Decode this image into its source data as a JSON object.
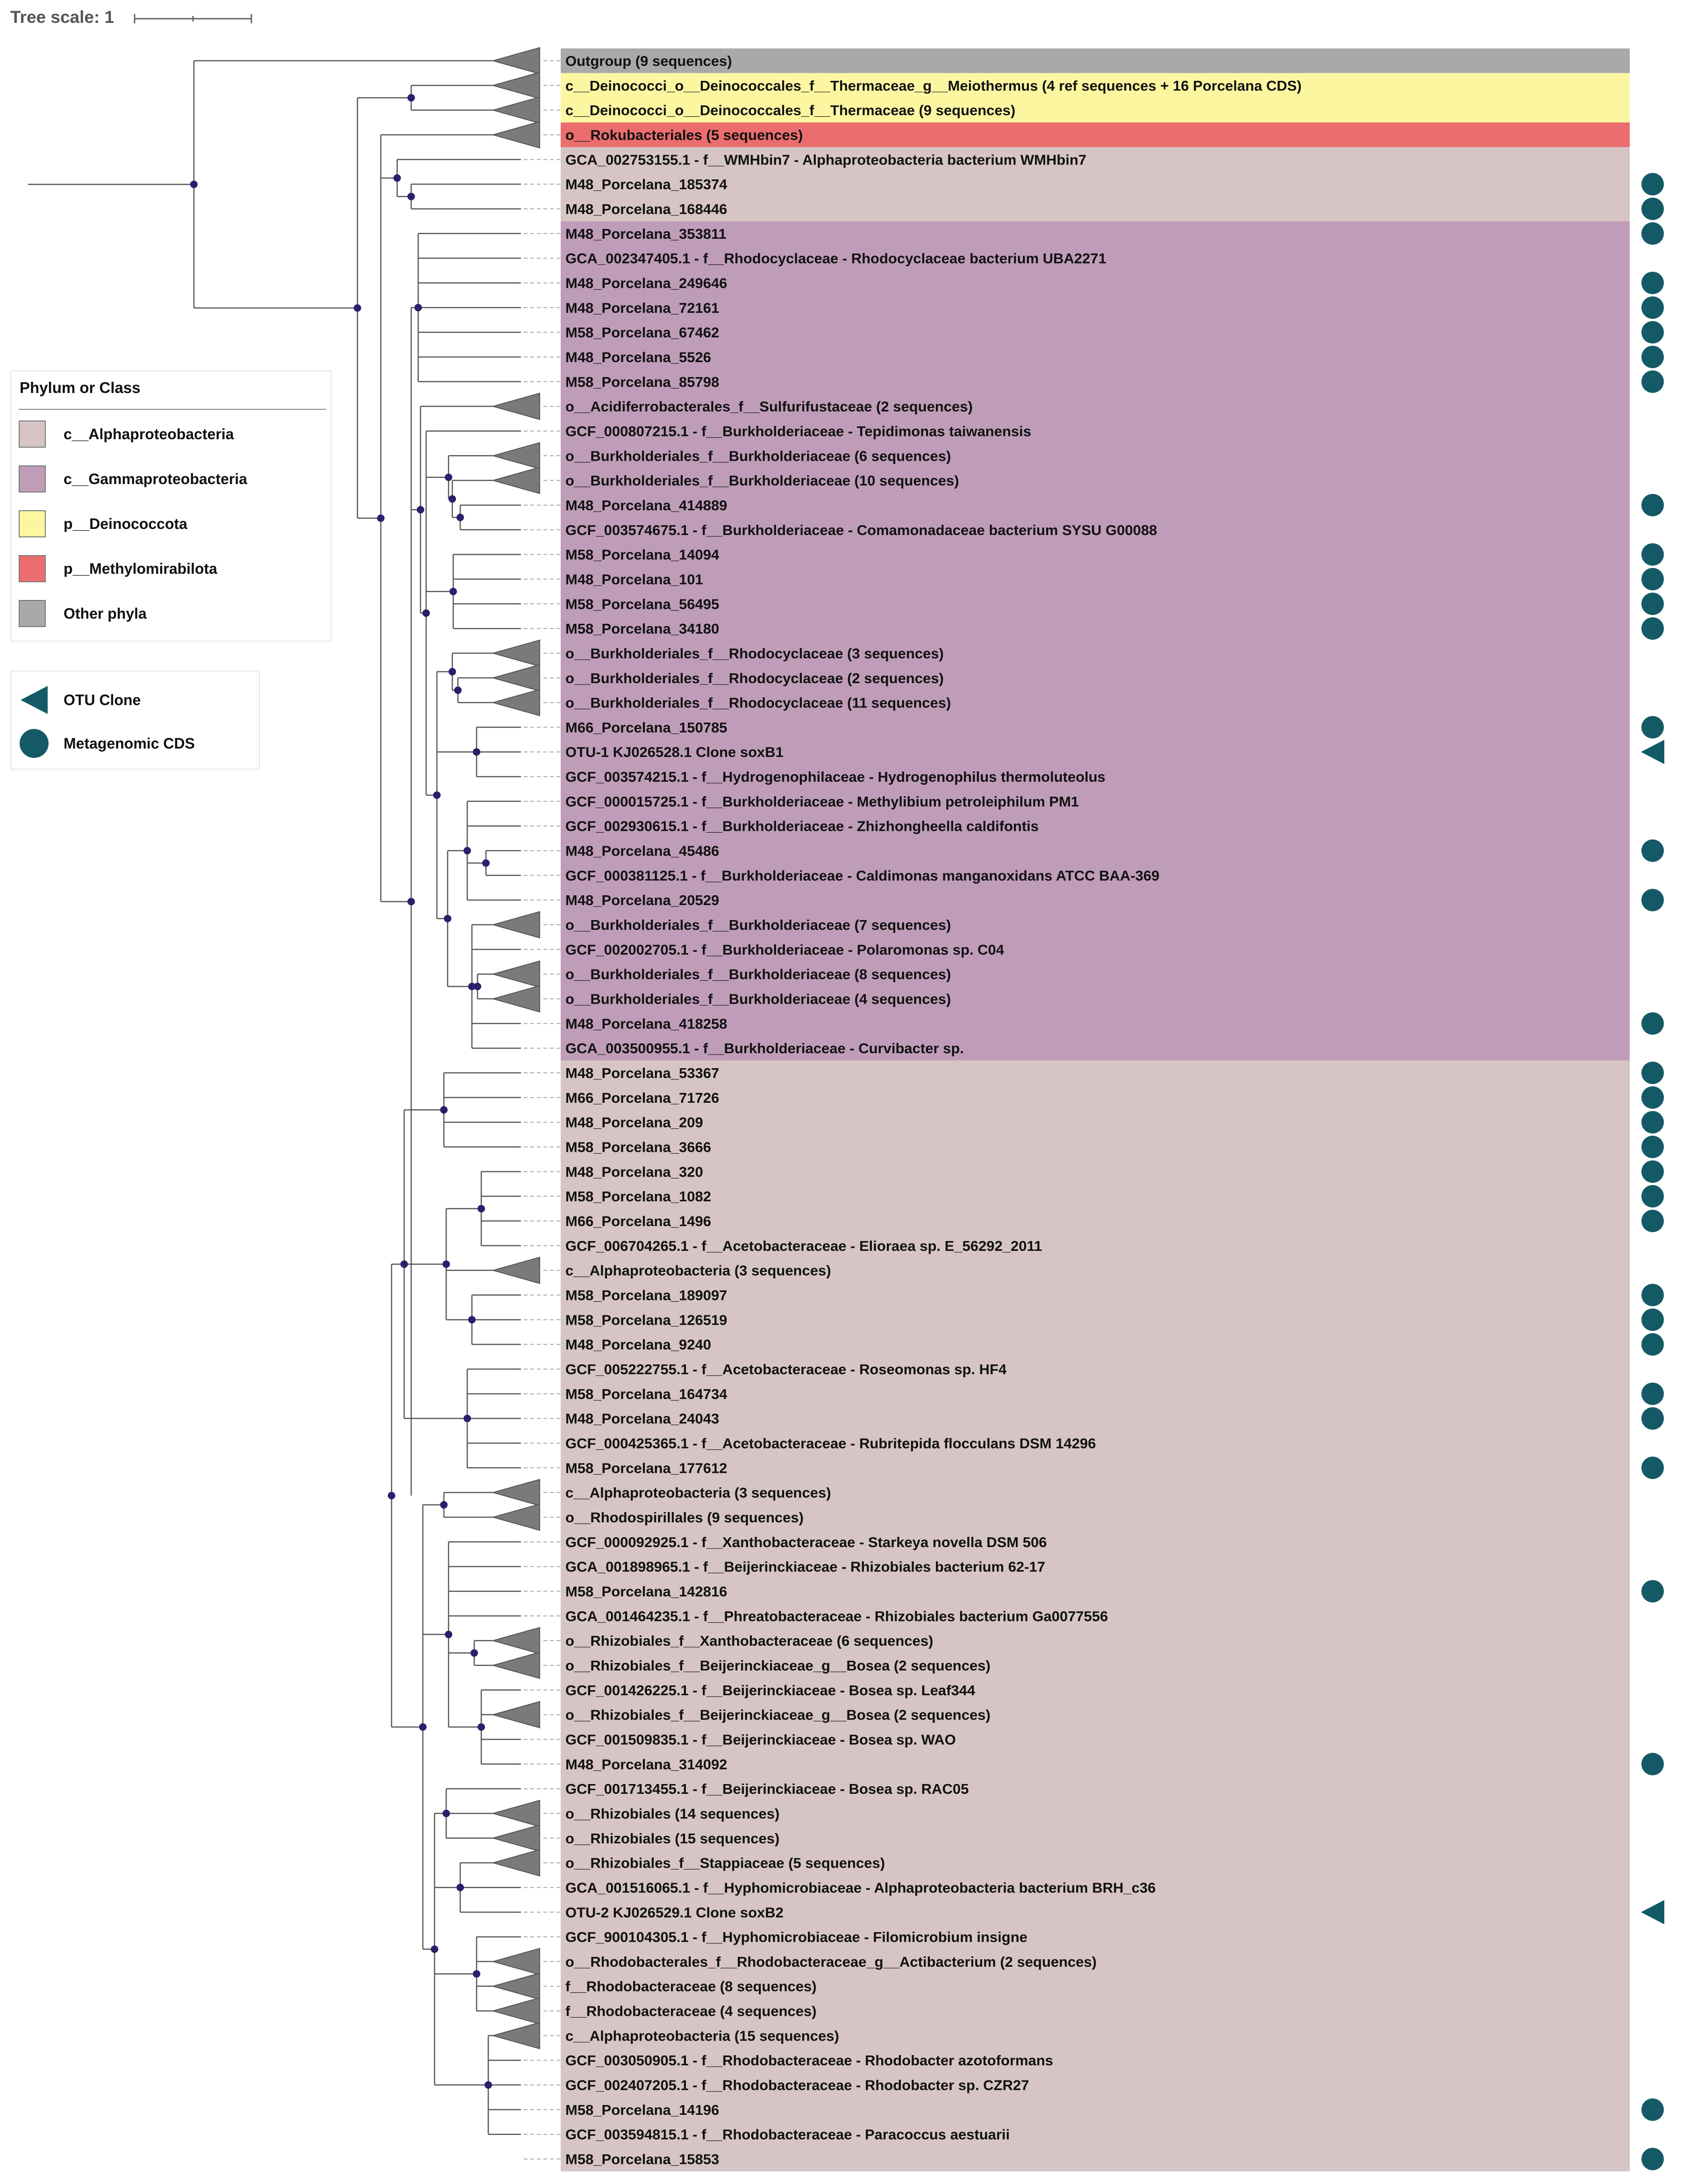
{
  "tree_scale": {
    "label": "Tree scale: 1"
  },
  "legend_phylum": {
    "title": "Phylum or Class",
    "items": [
      {
        "label": "c__Alphaproteobacteria",
        "color": "#d6c5c4"
      },
      {
        "label": "c__Gammaproteobacteria",
        "color": "#bf9db9"
      },
      {
        "label": "p__Deinococcota",
        "color": "#fdf6a1"
      },
      {
        "label": "p__Methylomirabilota",
        "color": "#eb6d6d"
      },
      {
        "label": "Other phyla",
        "color": "#a9a9a9"
      }
    ]
  },
  "legend_shape": {
    "items": [
      {
        "label": "OTU Clone",
        "shape": "left-triangle",
        "color": "#145a66"
      },
      {
        "label": "Metagenomic CDS",
        "shape": "circle",
        "color": "#145a66"
      }
    ]
  },
  "colors": {
    "branch": "#555555",
    "collapsed": "#7a7a7a",
    "node": "#2a1f6b",
    "marker": "#145a66"
  },
  "leaves": [
    {
      "label": "Outgroup (9 sequences)",
      "group": "other",
      "collapsed": true,
      "marker": ""
    },
    {
      "label": "c__Deinococci_o__Deinococcales_f__Thermaceae_g__Meiothermus (4 ref sequences + 16 Porcelana CDS)",
      "group": "deino",
      "collapsed": true,
      "marker": ""
    },
    {
      "label": "c__Deinococci_o__Deinococcales_f__Thermaceae (9 sequences)",
      "group": "deino",
      "collapsed": true,
      "marker": ""
    },
    {
      "label": "o__Rokubacteriales (5 sequences)",
      "group": "methyl",
      "collapsed": true,
      "marker": ""
    },
    {
      "label": "GCA_002753155.1 - f__WMHbin7 - Alphaproteobacteria bacterium WMHbin7",
      "group": "alpha",
      "collapsed": false,
      "marker": ""
    },
    {
      "label": "M48_Porcelana_185374",
      "group": "alpha",
      "collapsed": false,
      "marker": "circle"
    },
    {
      "label": "M48_Porcelana_168446",
      "group": "alpha",
      "collapsed": false,
      "marker": "circle"
    },
    {
      "label": "M48_Porcelana_353811",
      "group": "gamma",
      "collapsed": false,
      "marker": "circle"
    },
    {
      "label": "GCA_002347405.1 - f__Rhodocyclaceae - Rhodocyclaceae bacterium UBA2271",
      "group": "gamma",
      "collapsed": false,
      "marker": ""
    },
    {
      "label": "M48_Porcelana_249646",
      "group": "gamma",
      "collapsed": false,
      "marker": "circle"
    },
    {
      "label": "M48_Porcelana_72161",
      "group": "gamma",
      "collapsed": false,
      "marker": "circle"
    },
    {
      "label": "M58_Porcelana_67462",
      "group": "gamma",
      "collapsed": false,
      "marker": "circle"
    },
    {
      "label": "M48_Porcelana_5526",
      "group": "gamma",
      "collapsed": false,
      "marker": "circle"
    },
    {
      "label": "M58_Porcelana_85798",
      "group": "gamma",
      "collapsed": false,
      "marker": "circle"
    },
    {
      "label": "o__Acidiferrobacterales_f__Sulfurifustaceae (2 sequences)",
      "group": "gamma",
      "collapsed": true,
      "marker": ""
    },
    {
      "label": "GCF_000807215.1 - f__Burkholderiaceae - Tepidimonas taiwanensis",
      "group": "gamma",
      "collapsed": false,
      "marker": ""
    },
    {
      "label": "o__Burkholderiales_f__Burkholderiaceae (6 sequences)",
      "group": "gamma",
      "collapsed": true,
      "marker": ""
    },
    {
      "label": "o__Burkholderiales_f__Burkholderiaceae (10 sequences)",
      "group": "gamma",
      "collapsed": true,
      "marker": ""
    },
    {
      "label": "M48_Porcelana_414889",
      "group": "gamma",
      "collapsed": false,
      "marker": "circle"
    },
    {
      "label": "GCF_003574675.1 - f__Burkholderiaceae - Comamonadaceae bacterium SYSU G00088",
      "group": "gamma",
      "collapsed": false,
      "marker": ""
    },
    {
      "label": "M58_Porcelana_14094",
      "group": "gamma",
      "collapsed": false,
      "marker": "circle"
    },
    {
      "label": "M48_Porcelana_101",
      "group": "gamma",
      "collapsed": false,
      "marker": "circle"
    },
    {
      "label": "M58_Porcelana_56495",
      "group": "gamma",
      "collapsed": false,
      "marker": "circle"
    },
    {
      "label": "M58_Porcelana_34180",
      "group": "gamma",
      "collapsed": false,
      "marker": "circle"
    },
    {
      "label": "o__Burkholderiales_f__Rhodocyclaceae (3 sequences)",
      "group": "gamma",
      "collapsed": true,
      "marker": ""
    },
    {
      "label": "o__Burkholderiales_f__Rhodocyclaceae (2 sequences)",
      "group": "gamma",
      "collapsed": true,
      "marker": ""
    },
    {
      "label": "o__Burkholderiales_f__Rhodocyclaceae (11 sequences)",
      "group": "gamma",
      "collapsed": true,
      "marker": ""
    },
    {
      "label": "M66_Porcelana_150785",
      "group": "gamma",
      "collapsed": false,
      "marker": "circle"
    },
    {
      "label": "OTU-1 KJ026528.1 Clone soxB1",
      "group": "gamma",
      "collapsed": false,
      "marker": "triangle"
    },
    {
      "label": "GCF_003574215.1 - f__Hydrogenophilaceae - Hydrogenophilus thermoluteolus",
      "group": "gamma",
      "collapsed": false,
      "marker": ""
    },
    {
      "label": "GCF_000015725.1 - f__Burkholderiaceae - Methylibium petroleiphilum PM1",
      "group": "gamma",
      "collapsed": false,
      "marker": ""
    },
    {
      "label": "GCF_002930615.1 - f__Burkholderiaceae - Zhizhongheella caldifontis",
      "group": "gamma",
      "collapsed": false,
      "marker": ""
    },
    {
      "label": "M48_Porcelana_45486",
      "group": "gamma",
      "collapsed": false,
      "marker": "circle"
    },
    {
      "label": "GCF_000381125.1 - f__Burkholderiaceae - Caldimonas manganoxidans ATCC BAA-369",
      "group": "gamma",
      "collapsed": false,
      "marker": ""
    },
    {
      "label": "M48_Porcelana_20529",
      "group": "gamma",
      "collapsed": false,
      "marker": "circle"
    },
    {
      "label": "o__Burkholderiales_f__Burkholderiaceae (7 sequences)",
      "group": "gamma",
      "collapsed": true,
      "marker": ""
    },
    {
      "label": "GCF_002002705.1 - f__Burkholderiaceae - Polaromonas sp. C04",
      "group": "gamma",
      "collapsed": false,
      "marker": ""
    },
    {
      "label": "o__Burkholderiales_f__Burkholderiaceae (8 sequences)",
      "group": "gamma",
      "collapsed": true,
      "marker": ""
    },
    {
      "label": "o__Burkholderiales_f__Burkholderiaceae (4 sequences)",
      "group": "gamma",
      "collapsed": true,
      "marker": ""
    },
    {
      "label": "M48_Porcelana_418258",
      "group": "gamma",
      "collapsed": false,
      "marker": "circle"
    },
    {
      "label": "GCA_003500955.1 - f__Burkholderiaceae - Curvibacter sp.",
      "group": "gamma",
      "collapsed": false,
      "marker": ""
    },
    {
      "label": "M48_Porcelana_53367",
      "group": "alpha",
      "collapsed": false,
      "marker": "circle"
    },
    {
      "label": "M66_Porcelana_71726",
      "group": "alpha",
      "collapsed": false,
      "marker": "circle"
    },
    {
      "label": "M48_Porcelana_209",
      "group": "alpha",
      "collapsed": false,
      "marker": "circle"
    },
    {
      "label": "M58_Porcelana_3666",
      "group": "alpha",
      "collapsed": false,
      "marker": "circle"
    },
    {
      "label": "M48_Porcelana_320",
      "group": "alpha",
      "collapsed": false,
      "marker": "circle"
    },
    {
      "label": "M58_Porcelana_1082",
      "group": "alpha",
      "collapsed": false,
      "marker": "circle"
    },
    {
      "label": "M66_Porcelana_1496",
      "group": "alpha",
      "collapsed": false,
      "marker": "circle"
    },
    {
      "label": "GCF_006704265.1 - f__Acetobacteraceae - Elioraea sp. E_56292_2011",
      "group": "alpha",
      "collapsed": false,
      "marker": ""
    },
    {
      "label": "c__Alphaproteobacteria (3 sequences)",
      "group": "alpha",
      "collapsed": true,
      "marker": ""
    },
    {
      "label": "M58_Porcelana_189097",
      "group": "alpha",
      "collapsed": false,
      "marker": "circle"
    },
    {
      "label": "M58_Porcelana_126519",
      "group": "alpha",
      "collapsed": false,
      "marker": "circle"
    },
    {
      "label": "M48_Porcelana_9240",
      "group": "alpha",
      "collapsed": false,
      "marker": "circle"
    },
    {
      "label": "GCF_005222755.1 - f__Acetobacteraceae - Roseomonas sp. HF4",
      "group": "alpha",
      "collapsed": false,
      "marker": ""
    },
    {
      "label": "M58_Porcelana_164734",
      "group": "alpha",
      "collapsed": false,
      "marker": "circle"
    },
    {
      "label": "M48_Porcelana_24043",
      "group": "alpha",
      "collapsed": false,
      "marker": "circle"
    },
    {
      "label": "GCF_000425365.1 - f__Acetobacteraceae - Rubritepida flocculans DSM 14296",
      "group": "alpha",
      "collapsed": false,
      "marker": ""
    },
    {
      "label": "M58_Porcelana_177612",
      "group": "alpha",
      "collapsed": false,
      "marker": "circle"
    },
    {
      "label": "c__Alphaproteobacteria (3 sequences)",
      "group": "alpha",
      "collapsed": true,
      "marker": ""
    },
    {
      "label": "o__Rhodospirillales (9 sequences)",
      "group": "alpha",
      "collapsed": true,
      "marker": ""
    },
    {
      "label": "GCF_000092925.1 - f__Xanthobacteraceae - Starkeya novella DSM 506",
      "group": "alpha",
      "collapsed": false,
      "marker": ""
    },
    {
      "label": "GCA_001898965.1 - f__Beijerinckiaceae - Rhizobiales bacterium 62-17",
      "group": "alpha",
      "collapsed": false,
      "marker": ""
    },
    {
      "label": "M58_Porcelana_142816",
      "group": "alpha",
      "collapsed": false,
      "marker": "circle"
    },
    {
      "label": "GCA_001464235.1 - f__Phreatobacteraceae - Rhizobiales bacterium Ga0077556",
      "group": "alpha",
      "collapsed": false,
      "marker": ""
    },
    {
      "label": "o__Rhizobiales_f__Xanthobacteraceae (6 sequences)",
      "group": "alpha",
      "collapsed": true,
      "marker": ""
    },
    {
      "label": "o__Rhizobiales_f__Beijerinckiaceae_g__Bosea (2 sequences)",
      "group": "alpha",
      "collapsed": true,
      "marker": ""
    },
    {
      "label": "GCF_001426225.1 - f__Beijerinckiaceae - Bosea sp. Leaf344",
      "group": "alpha",
      "collapsed": false,
      "marker": ""
    },
    {
      "label": "o__Rhizobiales_f__Beijerinckiaceae_g__Bosea (2 sequences)",
      "group": "alpha",
      "collapsed": true,
      "marker": ""
    },
    {
      "label": "GCF_001509835.1 - f__Beijerinckiaceae - Bosea sp. WAO",
      "group": "alpha",
      "collapsed": false,
      "marker": ""
    },
    {
      "label": "M48_Porcelana_314092",
      "group": "alpha",
      "collapsed": false,
      "marker": "circle"
    },
    {
      "label": "GCF_001713455.1 - f__Beijerinckiaceae - Bosea sp. RAC05",
      "group": "alpha",
      "collapsed": false,
      "marker": ""
    },
    {
      "label": "o__Rhizobiales (14 sequences)",
      "group": "alpha",
      "collapsed": true,
      "marker": ""
    },
    {
      "label": "o__Rhizobiales (15 sequences)",
      "group": "alpha",
      "collapsed": true,
      "marker": ""
    },
    {
      "label": "o__Rhizobiales_f__Stappiaceae (5 sequences)",
      "group": "alpha",
      "collapsed": true,
      "marker": ""
    },
    {
      "label": "GCA_001516065.1 - f__Hyphomicrobiaceae - Alphaproteobacteria bacterium BRH_c36",
      "group": "alpha",
      "collapsed": false,
      "marker": ""
    },
    {
      "label": "OTU-2 KJ026529.1 Clone soxB2",
      "group": "alpha",
      "collapsed": false,
      "marker": "triangle"
    },
    {
      "label": "GCF_900104305.1 - f__Hyphomicrobiaceae - Filomicrobium insigne",
      "group": "alpha",
      "collapsed": false,
      "marker": ""
    },
    {
      "label": "o__Rhodobacterales_f__Rhodobacteraceae_g__Actibacterium (2 sequences)",
      "group": "alpha",
      "collapsed": true,
      "marker": ""
    },
    {
      "label": "f__Rhodobacteraceae (8 sequences)",
      "group": "alpha",
      "collapsed": true,
      "marker": ""
    },
    {
      "label": "f__Rhodobacteraceae (4 sequences)",
      "group": "alpha",
      "collapsed": true,
      "marker": ""
    },
    {
      "label": "c__Alphaproteobacteria (15 sequences)",
      "group": "alpha",
      "collapsed": true,
      "marker": ""
    },
    {
      "label": "GCF_003050905.1 - f__Rhodobacteraceae - Rhodobacter azotoformans",
      "group": "alpha",
      "collapsed": false,
      "marker": ""
    },
    {
      "label": "GCF_002407205.1 - f__Rhodobacteraceae - Rhodobacter sp. CZR27",
      "group": "alpha",
      "collapsed": false,
      "marker": ""
    },
    {
      "label": "M58_Porcelana_14196",
      "group": "alpha",
      "collapsed": false,
      "marker": "circle"
    },
    {
      "label": "GCF_003594815.1 - f__Rhodobacteraceae - Paracoccus aestuarii",
      "group": "alpha",
      "collapsed": false,
      "marker": ""
    },
    {
      "label": "M58_Porcelana_15853",
      "group": "alpha",
      "collapsed": false,
      "marker": "circle"
    }
  ]
}
